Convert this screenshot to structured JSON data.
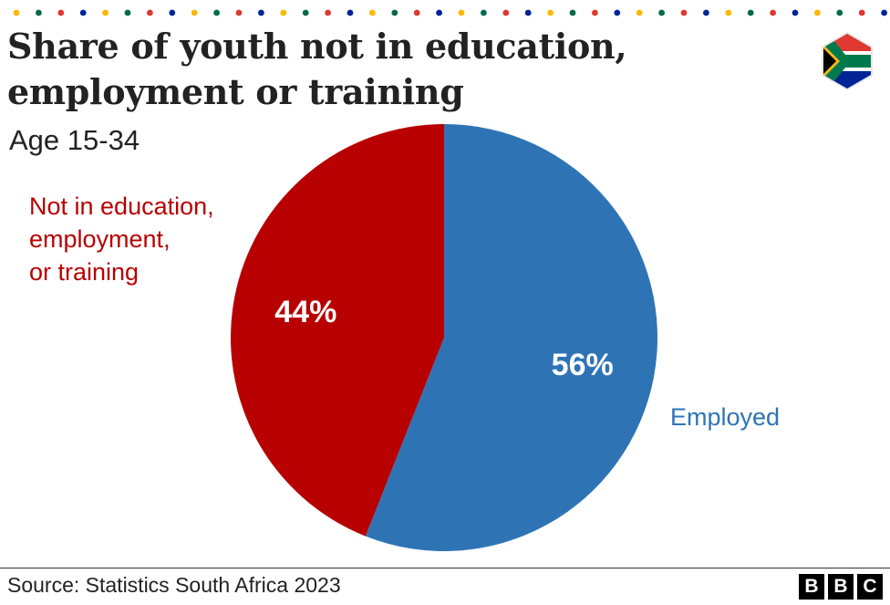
{
  "header": {
    "title_line1": "Share of youth not in education,",
    "title_line2": "employment or training",
    "subtitle": "Age 15-34"
  },
  "decoration": {
    "dot_colors": [
      "#ffb700",
      "#006a4e",
      "#de3831",
      "#002395"
    ],
    "flag_icon": "south-africa-flag-icon"
  },
  "chart_data": {
    "type": "pie",
    "title": "Share of youth not in education, employment or training",
    "subtitle": "Age 15-34",
    "slices": [
      {
        "name": "Employed",
        "value": 56,
        "label": "56%",
        "color": "#2e74b5"
      },
      {
        "name": "Not in education, employment, or training",
        "value": 44,
        "label": "44%",
        "color": "#b80000"
      }
    ],
    "legend": {
      "not_in_education_lines": [
        "Not in education,",
        "employment,",
        "or training"
      ],
      "employed": "Employed"
    }
  },
  "footer": {
    "source": "Source: Statistics South Africa 2023",
    "logo_letters": [
      "B",
      "B",
      "C"
    ]
  }
}
